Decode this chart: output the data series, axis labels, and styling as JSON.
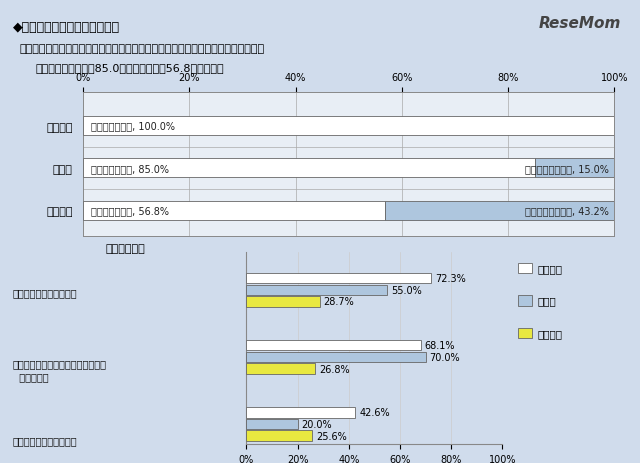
{
  "title": "◆運動部活動指導の工夫・改善",
  "subtitle_line1": "・所管の学校に対して，運動部活動指導の工夫・改善に取り組んでいる都道府県は",
  "subtitle_line2": "１００％，政令市は85.0％，市区町村は56.8％である。",
  "bg_color": "#d0dcec",
  "chart_bg_color": "#e8eef5",
  "top_chart": {
    "categories": [
      "都道府県",
      "政令市",
      "市区町村"
    ],
    "yes_values": [
      100.0,
      85.0,
      56.8
    ],
    "no_values": [
      0.0,
      15.0,
      43.2
    ],
    "yes_label": "取り組んでいる",
    "no_label": "取り組んでいない",
    "yes_color": "#ffffff",
    "no_color": "#aec6de",
    "bar_edge_color": "#666666"
  },
  "bottom_chart": {
    "cat0": "・休養日等の基準を設定",
    "cat1_line1": "・外部指導者の活用の拡大のための",
    "cat1_line2": "  特別な措置",
    "cat2": "・顧問の複数配置の促進",
    "todofuken": [
      72.3,
      68.1,
      42.6
    ],
    "seirei": [
      55.0,
      70.0,
      20.0
    ],
    "shiku": [
      28.7,
      26.8,
      25.6
    ],
    "todofuken_color": "#ffffff",
    "seirei_color": "#aec6de",
    "shiku_color": "#e8e840",
    "legend_labels": [
      "都道府県",
      "政令市",
      "市区町村"
    ],
    "bar_edge_color": "#666666"
  },
  "resemom_text": "ReseMom",
  "main_content_label": "（主な内容）"
}
